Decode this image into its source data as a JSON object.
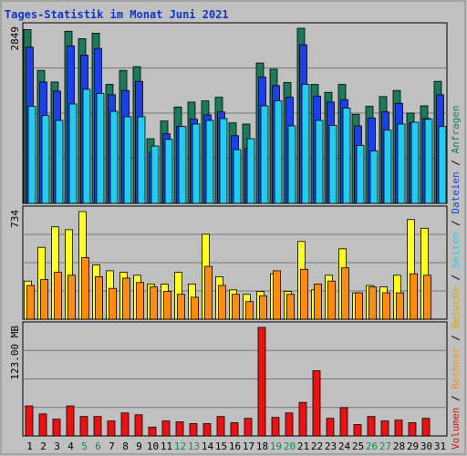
{
  "chart_data": [
    {
      "type": "bar",
      "title": "Tages-Statistik im Monat Juni 2021",
      "ymax_label": "2849",
      "categories": [
        "1",
        "2",
        "3",
        "4",
        "5",
        "6",
        "7",
        "8",
        "9",
        "10",
        "11",
        "12",
        "13",
        "14",
        "15",
        "16",
        "17",
        "18",
        "19",
        "20",
        "21",
        "22",
        "23",
        "24",
        "25",
        "26",
        "27",
        "28",
        "29",
        "30",
        "31"
      ],
      "weekend_days": [
        "5",
        "6",
        "12",
        "13",
        "19",
        "20",
        "26",
        "27"
      ],
      "series": [
        {
          "name": "Anfragen",
          "color": "#1a7a5a",
          "values": [
            2849,
            2180,
            1990,
            2820,
            2700,
            2790,
            1950,
            2180,
            2240,
            1060,
            1350,
            1580,
            1660,
            1680,
            1740,
            1320,
            1300,
            2300,
            2200,
            1980,
            2870,
            1950,
            1820,
            1950,
            1460,
            1590,
            1750,
            1850,
            1480,
            1600,
            2000
          ]
        },
        {
          "name": "Dateien",
          "color": "#1b3fe8",
          "values": [
            2560,
            1990,
            1840,
            2580,
            2430,
            2540,
            1780,
            1850,
            2000,
            840,
            1140,
            1260,
            1380,
            1450,
            1500,
            1110,
            900,
            2070,
            1930,
            1740,
            2600,
            1760,
            1660,
            1700,
            1270,
            1400,
            1500,
            1640,
            1320,
            1390,
            1780
          ]
        },
        {
          "name": "Seiten",
          "color": "#22ccee",
          "values": [
            1590,
            1440,
            1360,
            1630,
            1870,
            1800,
            1510,
            1420,
            1420,
            940,
            1050,
            1260,
            1300,
            1360,
            1390,
            880,
            1060,
            1600,
            1680,
            1270,
            1950,
            1360,
            1280,
            1560,
            950,
            860,
            1200,
            1300,
            1330,
            1380,
            1260
          ]
        }
      ]
    },
    {
      "type": "bar",
      "ymax_label": "734",
      "categories": [
        "1",
        "2",
        "3",
        "4",
        "5",
        "6",
        "7",
        "8",
        "9",
        "10",
        "11",
        "12",
        "13",
        "14",
        "15",
        "16",
        "17",
        "18",
        "19",
        "20",
        "21",
        "22",
        "23",
        "24",
        "25",
        "26",
        "27",
        "28",
        "29",
        "30",
        "31"
      ],
      "series": [
        {
          "name": "Besuche",
          "color": "#ffff22",
          "values": [
            260,
            490,
            630,
            610,
            734,
            370,
            330,
            320,
            300,
            240,
            240,
            320,
            240,
            580,
            290,
            200,
            170,
            190,
            310,
            190,
            530,
            200,
            300,
            480,
            180,
            230,
            220,
            300,
            680,
            620,
            0
          ]
        },
        {
          "name": "Rechner",
          "color": "#ff8c10",
          "values": [
            230,
            270,
            320,
            300,
            420,
            290,
            210,
            280,
            250,
            220,
            190,
            170,
            150,
            360,
            230,
            170,
            120,
            160,
            330,
            170,
            340,
            240,
            260,
            350,
            180,
            220,
            180,
            180,
            310,
            300,
            0
          ]
        }
      ]
    },
    {
      "type": "bar",
      "ymax_label": "123.00 MB",
      "categories": [
        "1",
        "2",
        "3",
        "4",
        "5",
        "6",
        "7",
        "8",
        "9",
        "10",
        "11",
        "12",
        "13",
        "14",
        "15",
        "16",
        "17",
        "18",
        "19",
        "20",
        "21",
        "22",
        "23",
        "24",
        "25",
        "26",
        "27",
        "28",
        "29",
        "30",
        "31"
      ],
      "series": [
        {
          "name": "Volumen",
          "color": "#ee1111",
          "values": [
            34,
            25,
            19,
            34,
            22,
            22,
            17,
            26,
            24,
            10,
            17,
            16,
            14,
            14,
            22,
            15,
            20,
            123,
            21,
            26,
            38,
            74,
            20,
            32,
            13,
            22,
            17,
            18,
            15,
            20,
            0
          ]
        }
      ]
    }
  ],
  "legend": [
    {
      "label": "Volumen",
      "color": "#dd1111"
    },
    {
      "label": " / ",
      "color": "#000000"
    },
    {
      "label": "Rechner",
      "color": "#ff8c10"
    },
    {
      "label": " / ",
      "color": "#000000"
    },
    {
      "label": "Besuche",
      "color": "#ddaa00"
    },
    {
      "label": " / ",
      "color": "#000000"
    },
    {
      "label": "Seiten",
      "color": "#22ccee"
    },
    {
      "label": " / ",
      "color": "#000000"
    },
    {
      "label": "Dateien",
      "color": "#1b3fe8"
    },
    {
      "label": " / ",
      "color": "#000000"
    },
    {
      "label": "Anfragen",
      "color": "#1a7a5a"
    }
  ],
  "colors": {
    "background": "#c0c0c0",
    "title": "#1133cc",
    "weekday_label": "#000000",
    "weekend_label": "#118866"
  }
}
